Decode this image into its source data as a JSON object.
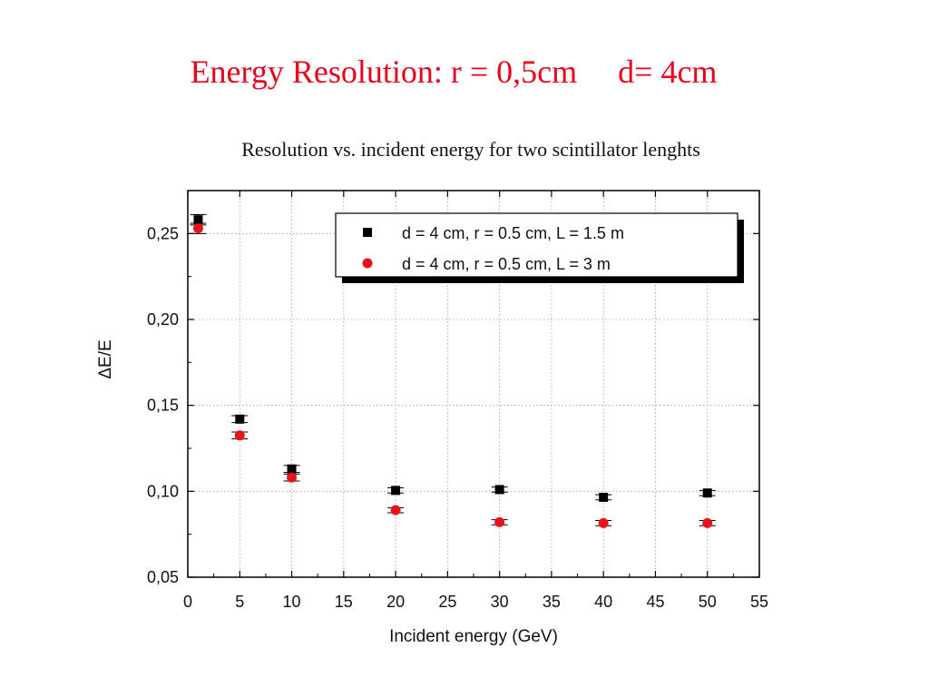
{
  "slide": {
    "title": "Energy Resolution: r = 0,5cm     d= 4cm"
  },
  "chart_data": {
    "type": "scatter",
    "title": "Resolution vs. incident energy for two scintillator lenghts",
    "xlabel": "Incident energy (GeV)",
    "ylabel": "ΔE/E",
    "xlim": [
      0,
      55
    ],
    "ylim": [
      0.05,
      0.275
    ],
    "x_ticks": [
      0,
      5,
      10,
      15,
      20,
      25,
      30,
      35,
      40,
      45,
      50,
      55
    ],
    "x_tick_labels": [
      "0",
      "5",
      "10",
      "15",
      "20",
      "25",
      "30",
      "35",
      "40",
      "45",
      "50",
      "55"
    ],
    "y_ticks": [
      0.05,
      0.1,
      0.15,
      0.2,
      0.25
    ],
    "y_tick_labels": [
      "0,05",
      "0,10",
      "0,15",
      "0,20",
      "0,25"
    ],
    "grid": true,
    "legend_position": "top-right",
    "series": [
      {
        "name": "d = 4 cm, r = 0.5 cm, L = 1.5 m",
        "marker": "square",
        "color": "#000000",
        "points": [
          {
            "x": 1,
            "y": 0.258,
            "err": 0.003
          },
          {
            "x": 5,
            "y": 0.142,
            "err": 0.002
          },
          {
            "x": 10,
            "y": 0.113,
            "err": 0.002
          },
          {
            "x": 20,
            "y": 0.1005,
            "err": 0.0015
          },
          {
            "x": 30,
            "y": 0.101,
            "err": 0.0015
          },
          {
            "x": 40,
            "y": 0.0965,
            "err": 0.0015
          },
          {
            "x": 50,
            "y": 0.099,
            "err": 0.0015
          }
        ]
      },
      {
        "name": "d = 4 cm, r = 0.5 cm, L = 3 m",
        "marker": "circle",
        "color": "#e8141c",
        "points": [
          {
            "x": 1,
            "y": 0.253,
            "err": 0.003
          },
          {
            "x": 5,
            "y": 0.1325,
            "err": 0.002
          },
          {
            "x": 10,
            "y": 0.108,
            "err": 0.002
          },
          {
            "x": 20,
            "y": 0.089,
            "err": 0.0015
          },
          {
            "x": 30,
            "y": 0.082,
            "err": 0.0015
          },
          {
            "x": 40,
            "y": 0.0815,
            "err": 0.0015
          },
          {
            "x": 50,
            "y": 0.0815,
            "err": 0.0015
          }
        ]
      }
    ]
  }
}
